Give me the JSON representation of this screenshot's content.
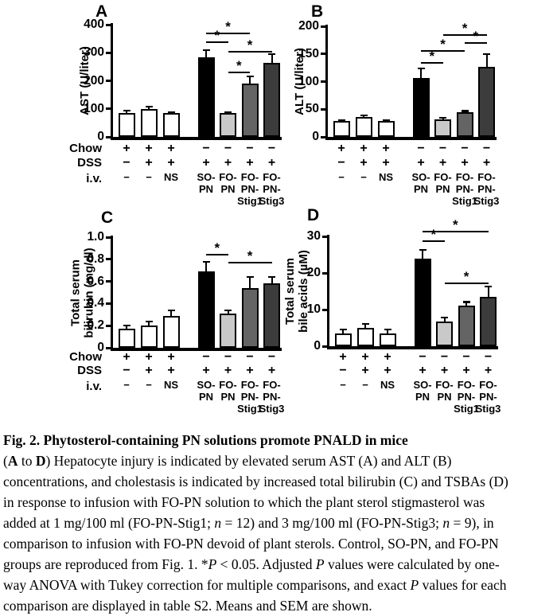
{
  "colors": {
    "white": "#ffffff",
    "black": "#000000",
    "lightgray": "#c9c9c9",
    "midgray": "#646464",
    "darkgray": "#3c3c3c",
    "axis": "#000000"
  },
  "row_labels": [
    "Chow",
    "DSS",
    "i.v."
  ],
  "star": "*",
  "chart_data": [
    {
      "type": "bar",
      "panel_letter": "A",
      "ylabel": "AST (U/liter)",
      "ylabel_lines": [
        "AST (U/liter)"
      ],
      "ylim": [
        0,
        400
      ],
      "yticks": [
        0,
        100,
        200,
        300,
        400
      ],
      "ytick_labels": [
        "0",
        "100",
        "200",
        "300",
        "400"
      ],
      "categories": [
        "−",
        "−",
        "NS",
        "SO-PN",
        "FO-PN",
        "FO-PN-Stig1",
        "FO-PN-Stig3"
      ],
      "values": [
        85,
        100,
        84,
        285,
        85,
        190,
        265
      ],
      "sem": [
        8,
        8,
        5,
        25,
        4,
        25,
        30
      ],
      "bar_colors": [
        "white",
        "white",
        "white",
        "black",
        "lightgray",
        "midgray",
        "darkgray"
      ],
      "significance": [
        {
          "i1": 3,
          "i2": 5,
          "y": 372,
          "label": "*"
        },
        {
          "i1": 3,
          "i2": 4,
          "y": 340,
          "label": "*"
        },
        {
          "i1": 4,
          "i2": 6,
          "y": 305,
          "label": "*"
        },
        {
          "i1": 4,
          "i2": 5,
          "y": 232,
          "label": "*"
        }
      ],
      "rows": {
        "chow": [
          "+",
          "+",
          "+",
          "−",
          "−",
          "−",
          "−"
        ],
        "dss": [
          "−",
          "+",
          "+",
          "+",
          "+",
          "+",
          "+"
        ],
        "iv": [
          [
            "−"
          ],
          [
            "−"
          ],
          [
            "NS"
          ],
          [
            "SO-",
            "PN"
          ],
          [
            "FO-",
            "PN"
          ],
          [
            "FO-",
            "PN-",
            "Stig1"
          ],
          [
            "FO-",
            "PN-",
            "Stig3"
          ]
        ]
      }
    },
    {
      "type": "bar",
      "panel_letter": "B",
      "ylabel": "ALT (U/liter)",
      "ylabel_lines": [
        "ALT (U/liter)"
      ],
      "ylim": [
        0,
        200
      ],
      "yticks": [
        0,
        50,
        100,
        150,
        200
      ],
      "ytick_labels": [
        "0",
        "50",
        "100",
        "150",
        "200"
      ],
      "categories": [
        "−",
        "−",
        "NS",
        "SO-PN",
        "FO-PN",
        "FO-PN-Stig1",
        "FO-PN-Stig3"
      ],
      "values": [
        29,
        36,
        29,
        107,
        32,
        45,
        126
      ],
      "sem": [
        1.5,
        2.5,
        1.5,
        17,
        2.5,
        2,
        24
      ],
      "bar_colors": [
        "white",
        "white",
        "white",
        "black",
        "lightgray",
        "midgray",
        "darkgray"
      ],
      "significance": [
        {
          "i1": 4,
          "i2": 6,
          "y": 185,
          "label": "*"
        },
        {
          "i1": 5,
          "i2": 6,
          "y": 171,
          "label": "*"
        },
        {
          "i1": 3,
          "i2": 5,
          "y": 157,
          "label": "*"
        },
        {
          "i1": 3,
          "i2": 4,
          "y": 135,
          "label": "*"
        }
      ],
      "rows": {
        "chow": [
          "+",
          "+",
          "+",
          "−",
          "−",
          "−",
          "−"
        ],
        "dss": [
          "−",
          "+",
          "+",
          "+",
          "+",
          "+",
          "+"
        ],
        "iv": [
          [
            "−"
          ],
          [
            "−"
          ],
          [
            "NS"
          ],
          [
            "SO-",
            "PN"
          ],
          [
            "FO-",
            "PN"
          ],
          [
            "FO-",
            "PN-",
            "Stig1"
          ],
          [
            "FO-",
            "PN-",
            "Stig3"
          ]
        ]
      }
    },
    {
      "type": "bar",
      "panel_letter": "C",
      "ylabel": "Total serum bilirubin (mg/dl)",
      "ylabel_lines": [
        "Total serum",
        "bilirubin (mg/dl)"
      ],
      "ylim": [
        0,
        1.0
      ],
      "yticks": [
        0,
        0.2,
        0.4,
        0.6,
        0.8,
        1.0
      ],
      "ytick_labels": [
        "0",
        "0.2",
        "0.4",
        "0.6",
        "0.8",
        "1.0"
      ],
      "categories": [
        "−",
        "−",
        "NS",
        "SO-PN",
        "FO-PN",
        "FO-PN-Stig1",
        "FO-PN-Stig3"
      ],
      "values": [
        0.17,
        0.2,
        0.29,
        0.69,
        0.31,
        0.54,
        0.58
      ],
      "sem": [
        0.035,
        0.04,
        0.05,
        0.09,
        0.03,
        0.1,
        0.06
      ],
      "bar_colors": [
        "white",
        "white",
        "white",
        "black",
        "lightgray",
        "midgray",
        "darkgray"
      ],
      "significance": [
        {
          "i1": 3,
          "i2": 4,
          "y": 0.85,
          "label": "*"
        },
        {
          "i1": 4,
          "i2": 6,
          "y": 0.78,
          "label": "*"
        }
      ],
      "rows": {
        "chow": [
          "+",
          "+",
          "+",
          "−",
          "−",
          "−",
          "−"
        ],
        "dss": [
          "−",
          "+",
          "+",
          "+",
          "+",
          "+",
          "+"
        ],
        "iv": [
          [
            "−"
          ],
          [
            "−"
          ],
          [
            "NS"
          ],
          [
            "SO-",
            "PN"
          ],
          [
            "FO-",
            "PN"
          ],
          [
            "FO-",
            "PN-",
            "Stig1"
          ],
          [
            "FO-",
            "PN-",
            "Stig3"
          ]
        ]
      }
    },
    {
      "type": "bar",
      "panel_letter": "D",
      "ylabel": "Total serum bile acids (µM)",
      "ylabel_lines": [
        "Total serum",
        "bile acids (µM)"
      ],
      "ylim": [
        0,
        30
      ],
      "yticks": [
        0,
        10,
        20,
        30
      ],
      "ytick_labels": [
        "0",
        "10",
        "20",
        "30"
      ],
      "categories": [
        "−",
        "−",
        "NS",
        "SO-PN",
        "FO-PN",
        "FO-PN-Stig1",
        "FO-PN-Stig3"
      ],
      "values": [
        3.5,
        4.9,
        3.5,
        24,
        6.7,
        11,
        13.5
      ],
      "sem": [
        1,
        1.2,
        1,
        2.3,
        1.1,
        1.1,
        2.8
      ],
      "bar_colors": [
        "white",
        "white",
        "white",
        "black",
        "lightgray",
        "midgray",
        "darkgray"
      ],
      "significance": [
        {
          "i1": 3,
          "i2": 6,
          "y": 31.5,
          "label": "*"
        },
        {
          "i1": 3,
          "i2": 4,
          "y": 29,
          "label": "*"
        },
        {
          "i1": 4,
          "i2": 6,
          "y": 17.3,
          "label": "*"
        }
      ],
      "rows": {
        "chow": [
          "+",
          "+",
          "+",
          "−",
          "−",
          "−",
          "−"
        ],
        "dss": [
          "−",
          "+",
          "+",
          "+",
          "+",
          "+",
          "+"
        ],
        "iv": [
          [
            "−"
          ],
          [
            "−"
          ],
          [
            "NS"
          ],
          [
            "SO-",
            "PN"
          ],
          [
            "FO-",
            "PN"
          ],
          [
            "FO-",
            "PN-",
            "Stig1"
          ],
          [
            "FO-",
            "PN-",
            "Stig3"
          ]
        ]
      }
    }
  ],
  "caption": {
    "title": "Fig. 2. Phytosterol-containing PN solutions promote PNALD in mice",
    "body_lines": [
      [
        {
          "t": "("
        },
        {
          "t": "A",
          "b": true
        },
        {
          "t": " to "
        },
        {
          "t": "D",
          "b": true
        },
        {
          "t": ") Hepatocyte injury is indicated by elevated serum AST (A) and ALT (B)"
        }
      ],
      [
        {
          "t": "concentrations, and cholestasis is indicated by increased total bilirubin (C) and TSBAs (D)"
        }
      ],
      [
        {
          "t": "in response to infusion with FO-PN solution to which the plant sterol stigmasterol was"
        }
      ],
      [
        {
          "t": "added at 1 mg/100 ml (FO-PN-Stig1; "
        },
        {
          "t": "n",
          "i": true
        },
        {
          "t": " = 12) and 3 mg/100 ml (FO-PN-Stig3; "
        },
        {
          "t": "n",
          "i": true
        },
        {
          "t": " = 9), in"
        }
      ],
      [
        {
          "t": "comparison to infusion with FO-PN devoid of plant sterols. Control, SO-PN, and FO-PN"
        }
      ],
      [
        {
          "t": "groups are reproduced from Fig. 1. *"
        },
        {
          "t": "P",
          "i": true
        },
        {
          "t": " < 0.05. Adjusted "
        },
        {
          "t": "P",
          "i": true
        },
        {
          "t": " values were calculated by one-"
        }
      ],
      [
        {
          "t": "way ANOVA with Tukey correction for multiple comparisons, and exact "
        },
        {
          "t": "P",
          "i": true
        },
        {
          "t": " values for each"
        }
      ],
      [
        {
          "t": "comparison are displayed in table S2. Means and SEM are shown."
        }
      ]
    ]
  }
}
